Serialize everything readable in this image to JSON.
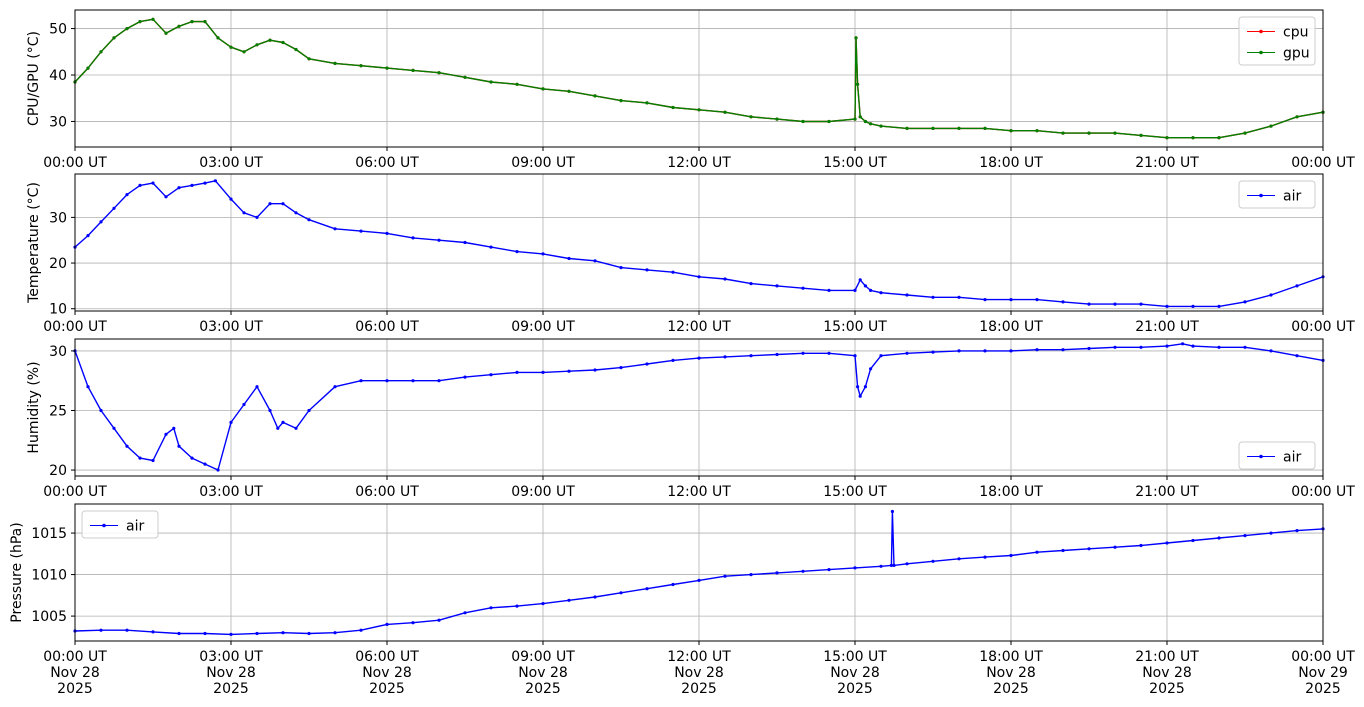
{
  "colors": {
    "cpu": "#ff0000",
    "gpu": "#008000",
    "air": "#0000ff",
    "grid": "#b0b0b0"
  },
  "chart_data": [
    {
      "type": "line",
      "ylabel": "CPU/GPU (°C)",
      "ylim": [
        24.5,
        54
      ],
      "yticks": [
        30,
        40,
        50
      ],
      "grid": true,
      "legend_position": "top-right",
      "x_hours": [
        0,
        0.25,
        0.5,
        0.75,
        1,
        1.25,
        1.5,
        1.75,
        2,
        2.25,
        2.5,
        2.75,
        3,
        3.25,
        3.5,
        3.75,
        4,
        4.25,
        4.5,
        5,
        5.5,
        6,
        6.5,
        7,
        7.5,
        8,
        8.5,
        9,
        9.5,
        10,
        10.5,
        11,
        11.5,
        12,
        12.5,
        13,
        13.5,
        14,
        14.5,
        15,
        15.02,
        15.05,
        15.1,
        15.2,
        15.3,
        15.5,
        16,
        16.5,
        17,
        17.5,
        18,
        18.5,
        19,
        19.5,
        20,
        20.5,
        21,
        21.5,
        22,
        22.5,
        23,
        23.5,
        24
      ],
      "series": [
        {
          "name": "cpu",
          "values": [
            38.5,
            41.5,
            45,
            48,
            50,
            51.5,
            52,
            49,
            50.5,
            51.5,
            51.5,
            48,
            46,
            45,
            46.5,
            47.5,
            47,
            45.5,
            43.5,
            42.5,
            42,
            41.5,
            41,
            40.5,
            39.5,
            38.5,
            38,
            37,
            36.5,
            35.5,
            34.5,
            34,
            33,
            32.5,
            32,
            31,
            30.5,
            30,
            30,
            30.5,
            48,
            38,
            31,
            30,
            29.5,
            29,
            28.5,
            28.5,
            28.5,
            28.5,
            28,
            28,
            27.5,
            27.5,
            27.5,
            27,
            26.5,
            26.5,
            26.5,
            27.5,
            29,
            31,
            32
          ]
        },
        {
          "name": "gpu",
          "values": [
            38.5,
            41.5,
            45,
            48,
            50,
            51.5,
            52,
            49,
            50.5,
            51.5,
            51.5,
            48,
            46,
            45,
            46.5,
            47.5,
            47,
            45.5,
            43.5,
            42.5,
            42,
            41.5,
            41,
            40.5,
            39.5,
            38.5,
            38,
            37,
            36.5,
            35.5,
            34.5,
            34,
            33,
            32.5,
            32,
            31,
            30.5,
            30,
            30,
            30.5,
            48,
            38,
            31,
            30,
            29.5,
            29,
            28.5,
            28.5,
            28.5,
            28.5,
            28,
            28,
            27.5,
            27.5,
            27.5,
            27,
            26.5,
            26.5,
            26.5,
            27.5,
            29,
            31,
            32
          ]
        }
      ]
    },
    {
      "type": "line",
      "ylabel": "Temperature (°C)",
      "ylim": [
        9.5,
        39.5
      ],
      "yticks": [
        10,
        20,
        30
      ],
      "grid": true,
      "legend_position": "top-right",
      "x_hours": [
        0,
        0.25,
        0.5,
        0.75,
        1,
        1.25,
        1.5,
        1.75,
        2,
        2.25,
        2.5,
        2.7,
        3,
        3.25,
        3.5,
        3.75,
        4,
        4.25,
        4.5,
        5,
        5.5,
        6,
        6.5,
        7,
        7.5,
        8,
        8.5,
        9,
        9.5,
        10,
        10.5,
        11,
        11.5,
        12,
        12.5,
        13,
        13.5,
        14,
        14.5,
        15,
        15.1,
        15.2,
        15.3,
        15.5,
        16,
        16.5,
        17,
        17.5,
        18,
        18.5,
        19,
        19.5,
        20,
        20.5,
        21,
        21.5,
        22,
        22.5,
        23,
        23.5,
        24
      ],
      "series": [
        {
          "name": "air",
          "values": [
            23.5,
            26,
            29,
            32,
            35,
            37,
            37.5,
            34.5,
            36.5,
            37,
            37.5,
            38,
            34,
            31,
            30,
            33,
            33,
            31,
            29.5,
            27.5,
            27,
            26.5,
            25.5,
            25,
            24.5,
            23.5,
            22.5,
            22,
            21,
            20.5,
            19,
            18.5,
            18,
            17,
            16.5,
            15.5,
            15,
            14.5,
            14,
            14,
            16.3,
            15,
            14,
            13.5,
            13,
            12.5,
            12.5,
            12,
            12,
            12,
            11.5,
            11,
            11,
            11,
            10.5,
            10.5,
            10.5,
            11.5,
            13,
            15,
            17
          ]
        }
      ]
    },
    {
      "type": "line",
      "ylabel": "Humidity (%)",
      "ylim": [
        19.5,
        31
      ],
      "yticks": [
        20,
        25,
        30
      ],
      "grid": true,
      "legend_position": "bottom-right",
      "x_hours": [
        0,
        0.25,
        0.5,
        0.75,
        1,
        1.25,
        1.5,
        1.75,
        1.9,
        2,
        2.25,
        2.5,
        2.75,
        3,
        3.25,
        3.5,
        3.75,
        3.9,
        4,
        4.25,
        4.5,
        5,
        5.5,
        6,
        6.5,
        7,
        7.5,
        8,
        8.5,
        9,
        9.5,
        10,
        10.5,
        11,
        11.5,
        12,
        12.5,
        13,
        13.5,
        14,
        14.5,
        15,
        15.05,
        15.1,
        15.2,
        15.3,
        15.5,
        16,
        16.5,
        17,
        17.5,
        18,
        18.5,
        19,
        19.5,
        20,
        20.5,
        21,
        21.3,
        21.5,
        22,
        22.5,
        23,
        23.5,
        24
      ],
      "series": [
        {
          "name": "air",
          "values": [
            30,
            27,
            25,
            23.5,
            22,
            21,
            20.8,
            23,
            23.5,
            22,
            21,
            20.5,
            20,
            24,
            25.5,
            27,
            25,
            23.5,
            24,
            23.5,
            25,
            27,
            27.5,
            27.5,
            27.5,
            27.5,
            27.8,
            28,
            28.2,
            28.2,
            28.3,
            28.4,
            28.6,
            28.9,
            29.2,
            29.4,
            29.5,
            29.6,
            29.7,
            29.8,
            29.8,
            29.6,
            27,
            26.2,
            27,
            28.5,
            29.6,
            29.8,
            29.9,
            30,
            30,
            30,
            30.1,
            30.1,
            30.2,
            30.3,
            30.3,
            30.4,
            30.6,
            30.4,
            30.3,
            30.3,
            30,
            29.6,
            29.2
          ]
        }
      ]
    },
    {
      "type": "line",
      "ylabel": "Pressure (hPa)",
      "ylim": [
        1002,
        1018.5
      ],
      "yticks": [
        1005,
        1010,
        1015
      ],
      "grid": true,
      "legend_position": "top-left",
      "x_tick_labels": [
        "00:00 UT\nNov 28\n2025",
        "03:00 UT\nNov 28\n2025",
        "06:00 UT\nNov 28\n2025",
        "09:00 UT\nNov 28\n2025",
        "12:00 UT\nNov 28\n2025",
        "15:00 UT\nNov 28\n2025",
        "18:00 UT\nNov 28\n2025",
        "21:00 UT\nNov 28\n2025",
        "00:00 UT\nNov 29\n2025"
      ],
      "x_hours": [
        0,
        0.5,
        1,
        1.5,
        2,
        2.5,
        3,
        3.5,
        4,
        4.5,
        5,
        5.5,
        6,
        6.5,
        7,
        7.5,
        8,
        8.5,
        9,
        9.5,
        10,
        10.5,
        11,
        11.5,
        12,
        12.5,
        13,
        13.5,
        14,
        14.5,
        15,
        15.5,
        15.7,
        15.72,
        15.75,
        16,
        16.5,
        17,
        17.5,
        18,
        18.5,
        19,
        19.5,
        20,
        20.5,
        21,
        21.5,
        22,
        22.5,
        23,
        23.5,
        24
      ],
      "series": [
        {
          "name": "air",
          "values": [
            1003.2,
            1003.3,
            1003.3,
            1003.1,
            1002.9,
            1002.9,
            1002.8,
            1002.9,
            1003,
            1002.9,
            1003,
            1003.3,
            1004,
            1004.2,
            1004.5,
            1005.4,
            1006,
            1006.2,
            1006.5,
            1006.9,
            1007.3,
            1007.8,
            1008.3,
            1008.8,
            1009.3,
            1009.8,
            1010,
            1010.2,
            1010.4,
            1010.6,
            1010.8,
            1011,
            1011.1,
            1017.6,
            1011.1,
            1011.3,
            1011.6,
            1011.9,
            1012.1,
            1012.3,
            1012.7,
            1012.9,
            1013.1,
            1013.3,
            1013.5,
            1013.8,
            1014.1,
            1014.4,
            1014.7,
            1015,
            1015.3,
            1015.5
          ]
        }
      ]
    }
  ],
  "x_axis": {
    "xlim_hours": [
      0,
      24
    ],
    "tick_hours": [
      0,
      3,
      6,
      9,
      12,
      15,
      18,
      21,
      24
    ],
    "tick_labels": [
      "00:00 UT",
      "03:00 UT",
      "06:00 UT",
      "09:00 UT",
      "12:00 UT",
      "15:00 UT",
      "18:00 UT",
      "21:00 UT",
      "00:00 UT"
    ]
  }
}
